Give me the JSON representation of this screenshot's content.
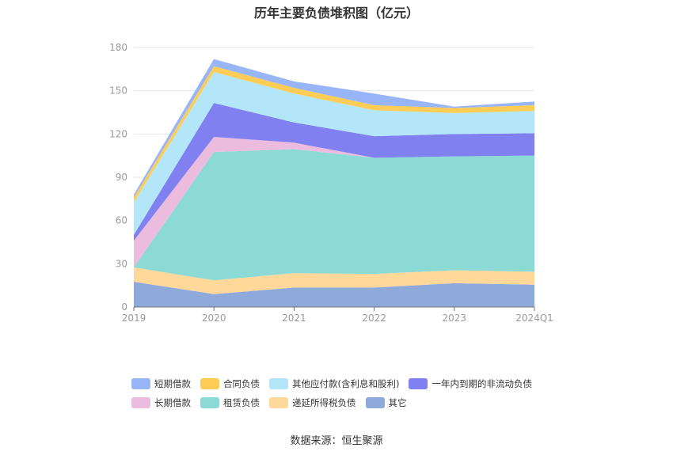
{
  "title": "历年主要负债堆积图（亿元）",
  "source": "数据来源：恒生聚源",
  "chart_data": {
    "type": "area",
    "stacked": true,
    "title": "历年主要负债堆积图（亿元）",
    "categories": [
      "2019",
      "2020",
      "2021",
      "2022",
      "2023",
      "2024Q1"
    ],
    "y_ticks": [
      "0",
      "30",
      "60",
      "90",
      "120",
      "150",
      "180"
    ],
    "ylim": [
      0,
      180
    ],
    "grid": true,
    "legend_position": "bottom",
    "series": [
      {
        "name": "其它",
        "color": "#8eaadb",
        "values": [
          17.5,
          9,
          13.5,
          13.5,
          16.5,
          15.5
        ]
      },
      {
        "name": "递延所得税负债",
        "color": "#ffd89a",
        "values": [
          10,
          9.5,
          10,
          9.5,
          9,
          9
        ]
      },
      {
        "name": "租赁负债",
        "color": "#8cdad6",
        "values": [
          0,
          89,
          86,
          80.5,
          79,
          80.5
        ]
      },
      {
        "name": "长期借款",
        "color": "#ebbcdd",
        "values": [
          18.5,
          10.5,
          4.5,
          0,
          0,
          0
        ]
      },
      {
        "name": "一年内到期的非流动负债",
        "color": "#8080f0",
        "values": [
          4,
          23.5,
          14,
          15,
          15.5,
          15.5
        ]
      },
      {
        "name": "其他应付款(含利息和股利)",
        "color": "#b3e6f9",
        "values": [
          22.5,
          21.5,
          20,
          18,
          14.5,
          15.5
        ]
      },
      {
        "name": "合同负债",
        "color": "#ffcd55",
        "values": [
          3.5,
          4,
          4,
          3.5,
          3.5,
          4
        ]
      },
      {
        "name": "短期借款",
        "color": "#98b5f8",
        "values": [
          2,
          5,
          4.5,
          8,
          1,
          2.5
        ]
      }
    ],
    "legend_rows": [
      [
        "短期借款",
        "合同负债",
        "其他应付款(含利息和股利)",
        "一年内到期的非流动负债"
      ],
      [
        "长期借款",
        "租赁负债",
        "递延所得税负债",
        "其它"
      ]
    ]
  }
}
